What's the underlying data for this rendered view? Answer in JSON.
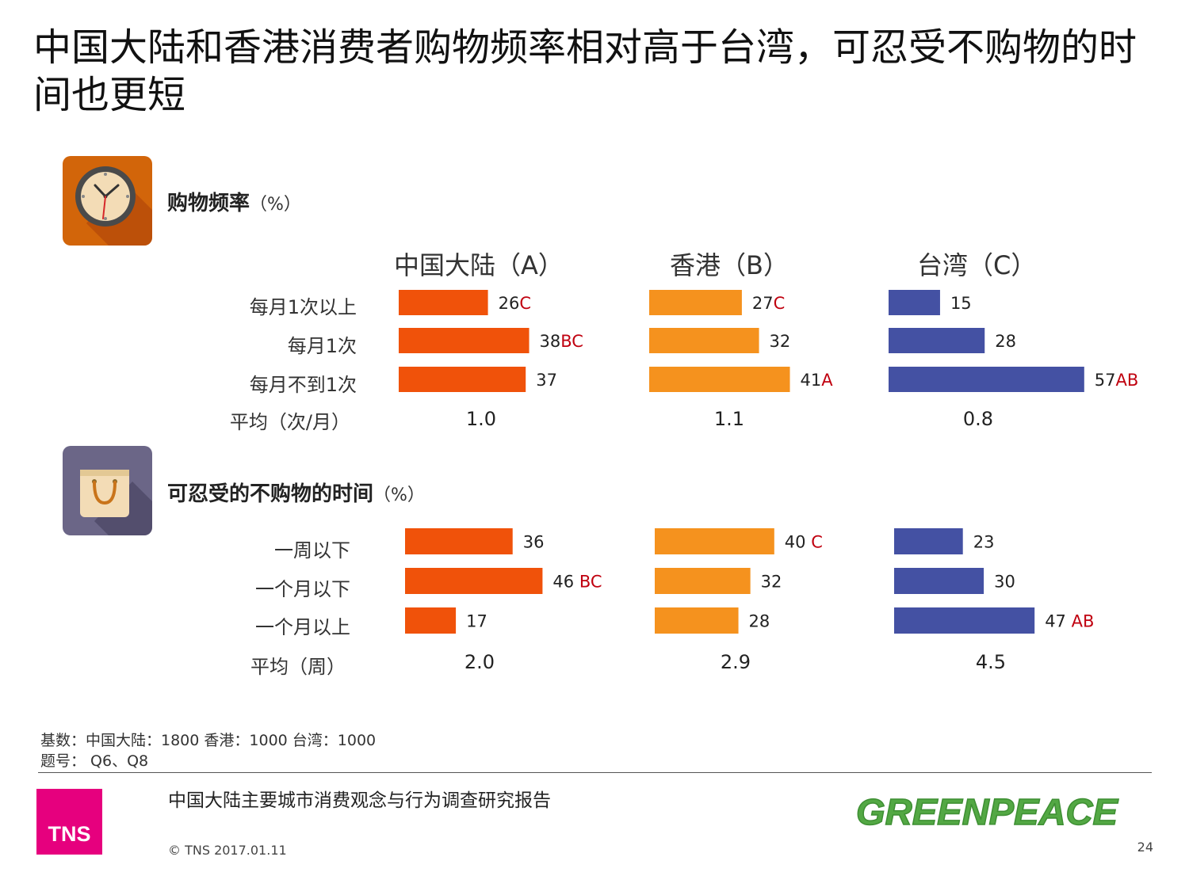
{
  "title": "中国大陆和香港消费者购物频率相对高于台湾，可忍受不购物的时间也更短",
  "colors": {
    "A": "#f0520a",
    "B": "#f5921e",
    "C": "#4451a3",
    "significance": "#c0000f"
  },
  "section1": {
    "title": "购物频率",
    "unit": "（%）",
    "icon": "clock-icon"
  },
  "section2": {
    "title": "可忍受的不购物的时间",
    "unit": "（%）",
    "icon": "shopping-bag-icon"
  },
  "headers": [
    "中国大陆（A）",
    "香港（B）",
    "台湾（C）"
  ],
  "chart_data": [
    {
      "type": "bar",
      "title": "购物频率（%）",
      "orientation": "horizontal",
      "categories": [
        "每月1次以上",
        "每月1次",
        "每月不到1次"
      ],
      "series": [
        {
          "name": "中国大陆（A）",
          "values": [
            26,
            38,
            37
          ],
          "sig": [
            "C",
            "BC",
            ""
          ]
        },
        {
          "name": "香港（B）",
          "values": [
            27,
            32,
            41
          ],
          "sig": [
            "C",
            "",
            "A"
          ]
        },
        {
          "name": "台湾（C）",
          "values": [
            15,
            28,
            57
          ],
          "sig": [
            "",
            "",
            "AB"
          ]
        }
      ],
      "avg_label": "平均（次/月）",
      "averages": [
        "1.0",
        "1.1",
        "0.8"
      ]
    },
    {
      "type": "bar",
      "title": "可忍受的不购物的时间（%）",
      "orientation": "horizontal",
      "categories": [
        "一周以下",
        "一个月以下",
        "一个月以上"
      ],
      "series": [
        {
          "name": "中国大陆（A）",
          "values": [
            36,
            46,
            17
          ],
          "sig": [
            "",
            "BC",
            ""
          ]
        },
        {
          "name": "香港（B）",
          "values": [
            40,
            32,
            28
          ],
          "sig": [
            "C",
            "",
            ""
          ]
        },
        {
          "name": "台湾（C）",
          "values": [
            23,
            30,
            47
          ],
          "sig": [
            "",
            "",
            "AB"
          ]
        }
      ],
      "avg_label": "平均（周）",
      "averages": [
        "2.0",
        "2.9",
        "4.5"
      ]
    }
  ],
  "footer": {
    "base": "基数：中国大陆：1800 香港：1000 台湾：1000",
    "question": "题号： Q6、Q8",
    "report_title": "中国大陆主要城市消费观念与行为调查研究报告",
    "copyright": "© TNS 2017.01.11",
    "page_number": "24",
    "tns_logo_text": "TNS",
    "greenpeace_logo_text": "GREENPEACE"
  }
}
